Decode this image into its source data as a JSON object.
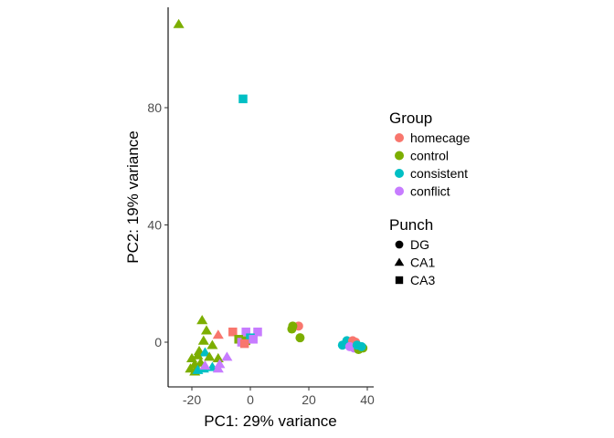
{
  "chart_data": {
    "type": "scatter",
    "xlabel": "PC1: 29% variance",
    "ylabel": "PC2: 19% variance",
    "xlim": [
      -28,
      42
    ],
    "ylim": [
      -16,
      113
    ],
    "xticks": [
      -20,
      0,
      20,
      40
    ],
    "yticks": [
      0,
      40,
      80
    ],
    "xtick_labels": [
      "-20",
      "0",
      "20",
      "40"
    ],
    "ytick_labels": [
      "0",
      "40",
      "80"
    ],
    "legend_position": "right",
    "legends": [
      {
        "title": "Group",
        "kind": "color",
        "entries": [
          {
            "label": "homecage",
            "color": "#F8766D"
          },
          {
            "label": "control",
            "color": "#7CAE00"
          },
          {
            "label": "consistent",
            "color": "#00BFC4"
          },
          {
            "label": "conflict",
            "color": "#C77CFF"
          }
        ]
      },
      {
        "title": "Punch",
        "kind": "shape",
        "entries": [
          {
            "label": "DG",
            "shape": "circle"
          },
          {
            "label": "CA1",
            "shape": "triangle"
          },
          {
            "label": "CA3",
            "shape": "square"
          }
        ]
      }
    ],
    "points": [
      {
        "x": -24.5,
        "y": 108.5,
        "group": "control",
        "punch": "CA1"
      },
      {
        "x": -2.5,
        "y": 83,
        "group": "consistent",
        "punch": "CA3"
      },
      {
        "x": -16.5,
        "y": 7.5,
        "group": "control",
        "punch": "CA1"
      },
      {
        "x": -15,
        "y": 4,
        "group": "control",
        "punch": "CA1"
      },
      {
        "x": -16,
        "y": 0.5,
        "group": "control",
        "punch": "CA1"
      },
      {
        "x": -11,
        "y": 2.5,
        "group": "homecage",
        "punch": "CA1"
      },
      {
        "x": -13,
        "y": -1,
        "group": "control",
        "punch": "CA1"
      },
      {
        "x": -17.5,
        "y": -3,
        "group": "control",
        "punch": "CA1"
      },
      {
        "x": -15.5,
        "y": -3.5,
        "group": "consistent",
        "punch": "CA1"
      },
      {
        "x": -20,
        "y": -5.5,
        "group": "control",
        "punch": "CA1"
      },
      {
        "x": -18,
        "y": -4.5,
        "group": "control",
        "punch": "CA1"
      },
      {
        "x": -14,
        "y": -5,
        "group": "control",
        "punch": "CA1"
      },
      {
        "x": -11,
        "y": -5.5,
        "group": "control",
        "punch": "CA1"
      },
      {
        "x": -19,
        "y": -7.5,
        "group": "control",
        "punch": "CA1"
      },
      {
        "x": -17,
        "y": -7,
        "group": "control",
        "punch": "CA1"
      },
      {
        "x": -20.5,
        "y": -9,
        "group": "control",
        "punch": "CA1"
      },
      {
        "x": -19,
        "y": -10,
        "group": "control",
        "punch": "CA1"
      },
      {
        "x": -18,
        "y": -9.5,
        "group": "consistent",
        "punch": "CA1"
      },
      {
        "x": -16,
        "y": -9,
        "group": "consistent",
        "punch": "CA1"
      },
      {
        "x": -13,
        "y": -8.5,
        "group": "consistent",
        "punch": "CA1"
      },
      {
        "x": -10.5,
        "y": -7.5,
        "group": "conflict",
        "punch": "CA1"
      },
      {
        "x": -8,
        "y": -5,
        "group": "conflict",
        "punch": "CA1"
      },
      {
        "x": -15.5,
        "y": -8,
        "group": "conflict",
        "punch": "CA1"
      },
      {
        "x": -11,
        "y": -9,
        "group": "conflict",
        "punch": "CA1"
      },
      {
        "x": -6,
        "y": 3.5,
        "group": "homecage",
        "punch": "CA3"
      },
      {
        "x": -1.5,
        "y": 3.5,
        "group": "conflict",
        "punch": "CA3"
      },
      {
        "x": 2.5,
        "y": 3.5,
        "group": "conflict",
        "punch": "CA3"
      },
      {
        "x": -4,
        "y": 1,
        "group": "control",
        "punch": "CA3"
      },
      {
        "x": -3,
        "y": 0,
        "group": "conflict",
        "punch": "CA3"
      },
      {
        "x": -1.5,
        "y": 0.5,
        "group": "control",
        "punch": "CA3"
      },
      {
        "x": 0,
        "y": 1.5,
        "group": "consistent",
        "punch": "CA3"
      },
      {
        "x": 1,
        "y": 1,
        "group": "conflict",
        "punch": "CA3"
      },
      {
        "x": -2,
        "y": -0.5,
        "group": "homecage",
        "punch": "CA3"
      },
      {
        "x": 16.5,
        "y": 5.5,
        "group": "homecage",
        "punch": "DG"
      },
      {
        "x": 14.5,
        "y": 5.5,
        "group": "control",
        "punch": "DG"
      },
      {
        "x": 14.2,
        "y": 4.5,
        "group": "control",
        "punch": "DG"
      },
      {
        "x": 17,
        "y": 1.5,
        "group": "control",
        "punch": "DG"
      },
      {
        "x": 31.5,
        "y": -1,
        "group": "consistent",
        "punch": "DG"
      },
      {
        "x": 33,
        "y": 0.5,
        "group": "consistent",
        "punch": "DG"
      },
      {
        "x": 35,
        "y": 0.5,
        "group": "homecage",
        "punch": "DG"
      },
      {
        "x": 36,
        "y": 0,
        "group": "homecage",
        "punch": "DG"
      },
      {
        "x": 34,
        "y": -1.5,
        "group": "conflict",
        "punch": "DG"
      },
      {
        "x": 35.5,
        "y": -2,
        "group": "conflict",
        "punch": "DG"
      },
      {
        "x": 37,
        "y": -2.5,
        "group": "control",
        "punch": "DG"
      },
      {
        "x": 38.5,
        "y": -2,
        "group": "control",
        "punch": "DG"
      },
      {
        "x": 36.5,
        "y": -1,
        "group": "consistent",
        "punch": "DG"
      },
      {
        "x": 38,
        "y": -1.5,
        "group": "consistent",
        "punch": "DG"
      }
    ]
  }
}
